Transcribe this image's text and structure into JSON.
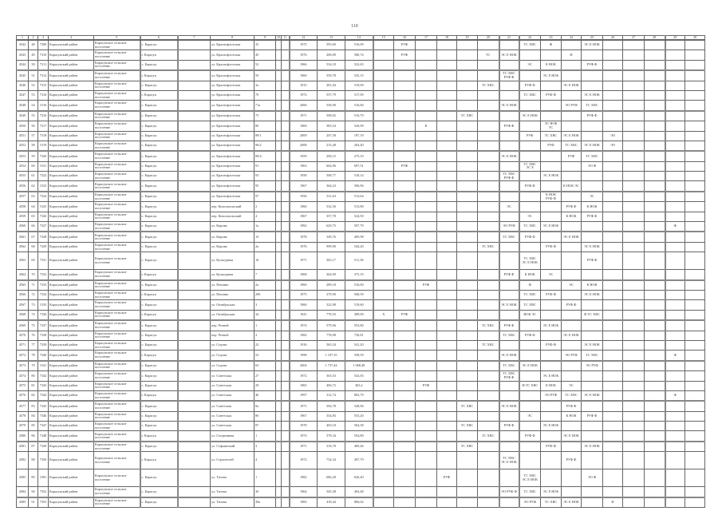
{
  "page_number": "110",
  "header_numbers": [
    "1",
    "2",
    "3",
    "4",
    "5",
    "6",
    "7",
    "8",
    "9",
    "10",
    "11",
    "12",
    "13",
    "14",
    "15",
    "16",
    "17",
    "18",
    "19",
    "20",
    "21",
    "22",
    "23",
    "24",
    "25",
    "26",
    "27",
    "28",
    "29",
    "30"
  ],
  "district": "Карасукский район",
  "settlement": "Карасукское сельское поселение",
  "rows": [
    {
      "n": "4542",
      "i": "48",
      "code": "7309",
      "place": "с. Карасук",
      "street": "ул. Краснофлотская",
      "house": "35",
      "year": "1975",
      "a1": "595,69",
      "a2": "516,09",
      "marks": {
        "16": "РУФ",
        "22": "ТС ХВС",
        "23": "Ф",
        "25": "ЭС Е НОК"
      }
    },
    {
      "n": "4543",
      "i": "49",
      "code": "7310",
      "place": "г. Карасук",
      "street": "ул. Краснофлотская",
      "house": "45",
      "year": "1976",
      "a1": "208,09",
      "a2": "580,74",
      "marks": {
        "16": "РУФ",
        "20": "ТС",
        "21": "ЭС Е НОК",
        "24": "Ф"
      }
    },
    {
      "n": "4544",
      "i": "50",
      "code": "7311",
      "place": "с. Карасук",
      "street": "ул. Краснофлотская",
      "house": "52",
      "year": "1966",
      "a1": "534,18",
      "a2": "522,65",
      "marks": {
        "22": "ЭС",
        "23": "К НОК",
        "25": "РУФ Ф"
      }
    },
    {
      "n": "4545",
      "i": "51",
      "code": "7312",
      "place": "г. Карасук",
      "street": "ул. Краснофлотская",
      "house": "59",
      "year": "1969",
      "a1": "359,78",
      "a2": "535,15",
      "marks": {
        "21": "ТС ХВС\nРУФ Ф",
        "23": "ЭС Е НОК"
      }
    },
    {
      "n": "4546",
      "i": "52",
      "code": "7315",
      "place": "с. Карасук",
      "street": "ул. Краснофлотская",
      "house": "3а",
      "year": "1915",
      "a1": "281,04",
      "a2": "519,09",
      "marks": {
        "20": "ТС ХВС",
        "22": "РУФ Ф",
        "24": "ЭС Е НОК"
      }
    },
    {
      "n": "4547",
      "i": "53",
      "code": "7316",
      "place": "г. Карасук",
      "street": "ул. Краснофлотская",
      "house": "70",
      "year": "1972",
      "a1": "557,79",
      "a2": "517,09",
      "marks": {
        "22": "ТС ХВС",
        "23": "РУФ Ф",
        "25": "ЭС Е НОК"
      }
    },
    {
      "n": "4548",
      "i": "54",
      "code": "1516",
      "place": "с. Карасук",
      "street": "ул. Краснофлотская",
      "house": "71а",
      "year": "2006",
      "a1": "536,90",
      "a2": "516,60",
      "marks": {
        "21": "ЭС Е НОК",
        "24": "ЭО РУФ",
        "25": "ТС ХВС"
      }
    },
    {
      "n": "4549",
      "i": "55",
      "code": "7316",
      "place": "с. Карасук",
      "street": "ул. Краснофлотская",
      "house": "75",
      "year": "1971",
      "a1": "598,02",
      "a2": "516,79",
      "marks": {
        "19": "ТС ХВС",
        "22": "ЭС Е НОК",
        "25": "РУФ Ф"
      }
    },
    {
      "n": "4550",
      "i": "56",
      "code": "7317",
      "place": "с. Карасук",
      "street": "ул. Краснофлотская",
      "house": "80",
      "year": "1969",
      "a1": "385,54",
      "a2": "520,99",
      "marks": {
        "17": "К",
        "21": "РУФ Ф",
        "23": "ЭС НОК\nТС"
      }
    },
    {
      "n": "4551",
      "i": "57",
      "code": "7318",
      "place": "с. Карасук",
      "street": "ул. Краснофлотская",
      "house": "89/1",
      "year": "2009",
      "a1": "207,58",
      "a2": "197,19",
      "marks": {
        "22": "РУФ",
        "23": "ТС ХВС",
        "24": "ЭС Е НОК",
        "26": "ЭО"
      }
    },
    {
      "n": "4552",
      "i": "58",
      "code": "1519",
      "place": "с. Карасук",
      "street": "ул. Краснофлотская",
      "house": "96/2",
      "year": "2008",
      "a1": "215,48",
      "a2": "204,40",
      "marks": {
        "23": "РУФ",
        "24": "ТС ХВС",
        "25": "ЭС Е НОК",
        "26": "ЭО"
      }
    },
    {
      "n": "4553",
      "i": "59",
      "code": "7320",
      "place": "с. Карасук",
      "street": "ул. Краснофлотская",
      "house": "89/4",
      "year": "1959",
      "a1": "290,15",
      "a2": "275,19",
      "marks": {
        "21": "ЭС Е НОК",
        "24": "РУФ",
        "25": "ТС ХВС"
      }
    },
    {
      "n": "4554",
      "i": "60",
      "code": "1521",
      "place": "с. Карасук",
      "street": "ул. Краснофлотская",
      "house": "91",
      "year": "1963",
      "a1": "664,96",
      "a2": "697,51",
      "marks": {
        "16": "РУФ",
        "22": "ТС ХВС\nЭС Е",
        "25": "ЭО Ф"
      }
    },
    {
      "n": "4555",
      "i": "61",
      "code": "7322",
      "place": "с. Карасук",
      "street": "ул. Краснофлотская",
      "house": "93",
      "year": "1958",
      "a1": "508,77",
      "a2": "518,14",
      "marks": {
        "21": "ТС ХВС\nРУФ Ф",
        "23": "ЭС Е НОК"
      }
    },
    {
      "n": "4556",
      "i": "62",
      "code": "1523",
      "place": "с. Карасук",
      "street": "ул. Краснофлотская",
      "house": "95",
      "year": "1967",
      "a1": "364,23",
      "a2": "506,96",
      "marks": {
        "22": "РУФ Ф",
        "24": "К НОК ЭС"
      }
    },
    {
      "n": "4557",
      "i": "63",
      "code": "7324",
      "place": "с. Карасук",
      "street": "ул. Краснофлотская",
      "house": "97",
      "year": "1956",
      "a1": "531,63",
      "a2": "513,64",
      "marks": {
        "23": "К НОК\nРУФ Ф",
        "25": "ЭС"
      }
    },
    {
      "n": "4558",
      "i": "64",
      "code": "1525",
      "place": "с. Карасук",
      "street": "пер. Комсомольский",
      "house": "2",
      "year": "1960",
      "a1": "532,56",
      "a2": "513,80",
      "marks": {
        "21": "ЭС",
        "24": "РУФ Ф",
        "25": "К НОК"
      }
    },
    {
      "n": "4559",
      "i": "65",
      "code": "7326",
      "place": "с. Карасук",
      "street": "пер. Комсомольский",
      "house": "4",
      "year": "1967",
      "a1": "357,78",
      "a2": "524,50",
      "marks": {
        "22": "ЭС",
        "24": "К НОК",
        "25": "РУФ Ф"
      }
    },
    {
      "n": "4560",
      "i": "66",
      "code": "7327",
      "place": "с. Карасук",
      "street": "ул. Кирова",
      "house": "1а",
      "year": "1992",
      "a1": "629,75",
      "a2": "597,79",
      "marks": {
        "21": "ЭО РУФ",
        "22": "ТС ХВС",
        "23": "ЭС Е НОК",
        "29": "Ф"
      }
    },
    {
      "n": "4561",
      "i": "67",
      "code": "7328",
      "place": "с. Карасук",
      "street": "ул. Кирова",
      "house": "1б",
      "year": "1978",
      "a1": "349,76",
      "a2": "495,98",
      "marks": {
        "21": "ТС ХВС",
        "22": "РУФ Ф",
        "24": "ЭС Е НОК"
      }
    },
    {
      "n": "4562",
      "i": "68",
      "code": "7329",
      "place": "с. Карасук",
      "street": "ул. Кирова",
      "house": "2а",
      "year": "1976",
      "a1": "999,90",
      "a2": "544,20",
      "marks": {
        "20": "ТС ХВС",
        "23": "РУФ Ф",
        "25": "ЭС Е НОК"
      }
    },
    {
      "n": "4563",
      "i": "69",
      "code": "7331",
      "place": "с. Карасук",
      "street": "ул. Культурная",
      "house": "16",
      "year": "1971",
      "a1": "365,17",
      "a2": "511,38",
      "tall": true,
      "marks": {
        "22": "ТС ХВС\nЭС Е НОК",
        "25": "РУФ Ф"
      }
    },
    {
      "n": "4564",
      "i": "70",
      "code": "7332",
      "place": "г. Карасук",
      "street": "ул. Культурная",
      "house": "7",
      "year": "1968",
      "a1": "364,09",
      "a2": "375,19",
      "marks": {
        "21": "РУФ Ф",
        "22": "К НОК",
        "23": "ЭС"
      }
    },
    {
      "n": "4565",
      "i": "71",
      "code": "7333",
      "place": "с. Карасук",
      "street": "ул. Пешина",
      "house": "2а",
      "year": "1960",
      "a1": "289,18",
      "a2": "516,00",
      "marks": {
        "17": "РУФ",
        "22": "Ф",
        "24": "ЭС",
        "25": "К НОК"
      }
    },
    {
      "n": "4566",
      "i": "72",
      "code": "7334",
      "place": "г. Карасук",
      "street": "ул. Пешина",
      "house": "290",
      "year": "1975",
      "a1": "379,90",
      "a2": "568,59",
      "marks": {
        "22": "ТС ХВС",
        "23": "РУФ Ф",
        "25": "ЭС Е НОК"
      }
    },
    {
      "n": "4567",
      "i": "73",
      "code": "1535",
      "place": "с. Карасук",
      "street": "ул. Октябрьская",
      "house": "3",
      "year": "1960",
      "a1": "322,98",
      "a2": "519,60",
      "marks": {
        "21": "ЭС Е НОК",
        "22": "ТС ХВС",
        "24": "РУФ Ф"
      }
    },
    {
      "n": "4568",
      "i": "74",
      "code": "7336",
      "place": "г. Карасук",
      "street": "ул. Октябрьская",
      "house": "34",
      "year": "1941",
      "a1": "778,53",
      "a2": "389,09",
      "marks": {
        "15": "Х",
        "16": "РУФ",
        "22": "НОК ЭС",
        "25": "Ф ТС ХВС"
      }
    },
    {
      "n": "4569",
      "i": "75",
      "code": "7337",
      "place": "с. Карасук",
      "street": "пер. Речной",
      "house": "1",
      "year": "1974",
      "a1": "579,96",
      "a2": "553,80",
      "marks": {
        "20": "ТС ХВС",
        "21": "РУФ Ф",
        "23": "ЭС Е НОК"
      }
    },
    {
      "n": "4570",
      "i": "76",
      "code": "7338",
      "place": "с. Карасук",
      "street": "пер. Речной",
      "house": "3",
      "year": "1982",
      "a1": "778,98",
      "a2": "730,81",
      "marks": {
        "21": "ТС ХВС",
        "22": "РУФ Ф",
        "24": "ЭС Е НОК"
      }
    },
    {
      "n": "4571",
      "i": "77",
      "code": "7339",
      "place": "с. Карасук",
      "street": "ул. Седова",
      "house": "22",
      "year": "1916",
      "a1": "565,34",
      "a2": "541,20",
      "marks": {
        "20": "ТС ХВС",
        "23": "РУФ Ф",
        "25": "ЭС Е НОК"
      }
    },
    {
      "n": "4572",
      "i": "78",
      "code": "7340",
      "place": "г. Карасук",
      "street": "ул. Седова",
      "house": "52",
      "year": "1998",
      "a1": "1 107,35",
      "a2": "558,59",
      "marks": {
        "21": "ЭС Е НОК",
        "24": "ЭО РУФ",
        "25": "ТС ХВС",
        "29": "Ф"
      }
    },
    {
      "n": "4573",
      "i": "79",
      "code": "1541",
      "place": "с. Карасук",
      "street": "ул. Седова",
      "house": "65",
      "year": "2004",
      "a1": "1 737,44",
      "a2": "1 068,40",
      "marks": {
        "21": "ТС ХВС",
        "22": "ЭС Е НОК",
        "25": "ЭО РУФ"
      }
    },
    {
      "n": "4574",
      "i": "80",
      "code": "7342",
      "place": "с. Карасук",
      "street": "ул. Советская",
      "house": "27",
      "year": "1972",
      "a1": "363,53",
      "a2": "532,65",
      "marks": {
        "21": "ТС ХВС\nРУФ Ф",
        "23": "ЭС Е НОК"
      }
    },
    {
      "n": "4575",
      "i": "81",
      "code": "7343",
      "place": "с. Карасук",
      "street": "ул. Советская",
      "house": "29",
      "year": "1965",
      "a1": "406,72",
      "a2": "365,2",
      "marks": {
        "17": "РУФ",
        "22": "Ф ТС ХВС",
        "23": "К НОК",
        "24": "ЭС"
      }
    },
    {
      "n": "4576",
      "i": "82",
      "code": "7344",
      "place": "г. Карасук",
      "street": "ул. Советская",
      "house": "46",
      "year": "1997",
      "a1": "312,74",
      "a2": "802,79",
      "marks": {
        "23": "ЭО РУФ",
        "24": "ТС ХВС",
        "25": "ЭС Е НОК",
        "29": "Ф"
      }
    },
    {
      "n": "4577",
      "i": "83",
      "code": "7345",
      "place": "с. Карасук",
      "street": "ул. Советская",
      "house": "8а",
      "year": "1971",
      "a1": "394,78",
      "a2": "528,96",
      "marks": {
        "19": "ТС ХВС",
        "21": "ЭС Е НОК",
        "24": "РУФ Ф"
      }
    },
    {
      "n": "4578",
      "i": "84",
      "code": "7346",
      "place": "с. Карасук",
      "street": "ул. Советская",
      "house": "8б",
      "year": "1967",
      "a1": "334,83",
      "a2": "553,20",
      "marks": {
        "22": "ЭС",
        "24": "К НОК",
        "25": "РУФ Ф"
      }
    },
    {
      "n": "4579",
      "i": "85",
      "code": "7347",
      "place": "с. Карасук",
      "street": "ул. Советская",
      "house": "87",
      "year": "1978",
      "a1": "403,18",
      "a2": "564,38",
      "marks": {
        "19": "ТС ХВС",
        "21": "РУФ Ф",
        "23": "ЭС Е НОК"
      }
    },
    {
      "n": "4580",
      "i": "86",
      "code": "7348",
      "place": "г. Карасук",
      "street": "ул. Спортивная",
      "house": "1",
      "year": "1974",
      "a1": "578,34",
      "a2": "554,80",
      "marks": {
        "20": "ТС ХВС",
        "22": "РУФ Ф",
        "24": "ЭС Е НОК"
      }
    },
    {
      "n": "4581",
      "i": "87",
      "code": "7349",
      "place": "с. Карасук",
      "street": "ул. Софьинский",
      "house": "3",
      "year": "1971",
      "a1": "318,78",
      "a2": "409,46",
      "marks": {
        "19": "ТС ХВС",
        "23": "РУФ Ф",
        "25": "ЭС Е НОК"
      }
    },
    {
      "n": "4582",
      "i": "88",
      "code": "7350",
      "place": "г. Карасук",
      "street": "ул. Строителей",
      "house": "4",
      "year": "1972",
      "a1": "734,34",
      "a2": "497,79",
      "tall": true,
      "marks": {
        "21": "ТС ХВС\nЭС Е НОК",
        "24": "РУФ Ф"
      }
    },
    {
      "n": "4583",
      "i": "89",
      "code": "1581",
      "place": "с. Карасук",
      "street": "ул. Титова",
      "house": "1",
      "year": "1982",
      "a1": "686,28",
      "a2": "620,40",
      "tall": true,
      "marks": {
        "18": "РУФ",
        "22": "ТС ХВС\nЭС Е НОК",
        "25": "ЭО Ф"
      }
    },
    {
      "n": "4584",
      "i": "90",
      "code": "7352",
      "place": "с. Карасук",
      "street": "ул. Титова",
      "house": "3б",
      "year": "1964",
      "a1": "545,38",
      "a2": "404,48",
      "marks": {
        "21": "ЭО РУФ Ф",
        "22": "ТС ХВС",
        "23": "ЭС Е НОК"
      }
    },
    {
      "n": "4585",
      "i": "91",
      "code": "7353",
      "place": "с. Карасук",
      "street": "ул. Титова",
      "house": "39а",
      "year": "1983",
      "a1": "418,44",
      "a2": "806,02",
      "marks": {
        "22": "ЭО РУФ",
        "23": "ТС ХВС",
        "24": "ЭС Е НОК",
        "26": "Ф"
      }
    }
  ]
}
